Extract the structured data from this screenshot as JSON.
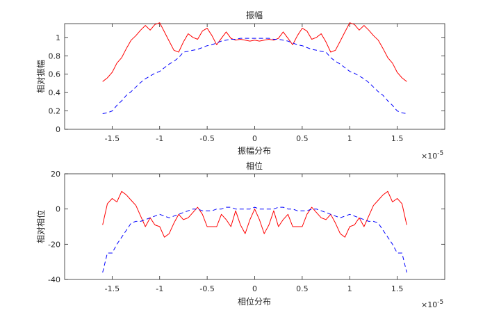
{
  "chart_data": [
    {
      "type": "line",
      "title": "振幅",
      "xlabel": "振幅分布",
      "ylabel": "相对振幅",
      "x_exponent": "×10-5",
      "xlim": [
        -2.0,
        2.0
      ],
      "ylim": [
        0,
        1.15
      ],
      "xticks": [
        -1.5,
        -1,
        -0.5,
        0,
        0.5,
        1,
        1.5
      ],
      "xtick_labels": [
        "-1.5",
        "-1",
        "-0.5",
        "0",
        "0.5",
        "1",
        "1.5"
      ],
      "yticks": [
        0,
        0.2,
        0.4,
        0.6,
        0.8,
        1
      ],
      "ytick_labels": [
        "0",
        "0.2",
        "0.4",
        "0.6",
        "0.8",
        "1"
      ],
      "grid": false,
      "x": [
        -1.6,
        -1.55,
        -1.5,
        -1.45,
        -1.4,
        -1.35,
        -1.3,
        -1.25,
        -1.2,
        -1.15,
        -1.1,
        -1.05,
        -1.0,
        -0.95,
        -0.9,
        -0.85,
        -0.8,
        -0.75,
        -0.7,
        -0.65,
        -0.6,
        -0.55,
        -0.5,
        -0.45,
        -0.4,
        -0.35,
        -0.3,
        -0.25,
        -0.2,
        -0.15,
        -0.1,
        -0.05,
        0,
        0.05,
        0.1,
        0.15,
        0.2,
        0.25,
        0.3,
        0.35,
        0.4,
        0.45,
        0.5,
        0.55,
        0.6,
        0.65,
        0.7,
        0.75,
        0.8,
        0.85,
        0.9,
        0.95,
        1.0,
        1.05,
        1.1,
        1.15,
        1.2,
        1.25,
        1.3,
        1.35,
        1.4,
        1.45,
        1.5,
        1.55,
        1.6
      ],
      "series": [
        {
          "color": "#ff0000",
          "dash": "solid",
          "values": [
            0.52,
            0.56,
            0.62,
            0.72,
            0.78,
            0.88,
            0.97,
            1.02,
            1.08,
            1.13,
            1.08,
            1.14,
            1.16,
            1.06,
            0.96,
            0.86,
            0.84,
            0.95,
            1.04,
            1.0,
            0.98,
            1.07,
            1.1,
            1.02,
            0.92,
            0.99,
            1.06,
            0.99,
            0.97,
            0.98,
            0.97,
            0.96,
            0.97,
            0.96,
            0.97,
            0.98,
            0.97,
            0.99,
            1.06,
            0.99,
            0.92,
            1.02,
            1.1,
            1.07,
            0.98,
            1.0,
            1.04,
            0.95,
            0.84,
            0.86,
            0.96,
            1.06,
            1.16,
            1.14,
            1.08,
            1.13,
            1.08,
            1.02,
            0.97,
            0.88,
            0.78,
            0.72,
            0.62,
            0.56,
            0.52
          ]
        },
        {
          "color": "#0000ff",
          "dash": "dashed",
          "values": [
            0.17,
            0.18,
            0.2,
            0.26,
            0.31,
            0.37,
            0.41,
            0.46,
            0.51,
            0.55,
            0.58,
            0.61,
            0.63,
            0.67,
            0.71,
            0.74,
            0.78,
            0.84,
            0.85,
            0.86,
            0.87,
            0.89,
            0.91,
            0.92,
            0.94,
            0.96,
            0.97,
            0.98,
            0.98,
            0.99,
            0.99,
            0.99,
            0.99,
            0.99,
            0.99,
            0.99,
            0.98,
            0.98,
            0.97,
            0.96,
            0.94,
            0.92,
            0.91,
            0.89,
            0.87,
            0.86,
            0.85,
            0.84,
            0.78,
            0.74,
            0.71,
            0.67,
            0.63,
            0.61,
            0.58,
            0.55,
            0.51,
            0.46,
            0.41,
            0.37,
            0.31,
            0.26,
            0.2,
            0.18,
            0.17
          ]
        }
      ]
    },
    {
      "type": "line",
      "title": "相位",
      "xlabel": "相位分布",
      "ylabel": "相对相位",
      "x_exponent": "×10-5",
      "xlim": [
        -2.0,
        2.0
      ],
      "ylim": [
        -40,
        20
      ],
      "xticks": [
        -1.5,
        -1,
        -0.5,
        0,
        0.5,
        1,
        1.5
      ],
      "xtick_labels": [
        "-1.5",
        "-1",
        "-0.5",
        "0",
        "0.5",
        "1",
        "1.5"
      ],
      "yticks": [
        -40,
        -20,
        0,
        20
      ],
      "ytick_labels": [
        "-40",
        "-20",
        "0",
        "20"
      ],
      "grid": false,
      "x": [
        -1.6,
        -1.55,
        -1.5,
        -1.45,
        -1.4,
        -1.35,
        -1.3,
        -1.25,
        -1.2,
        -1.15,
        -1.1,
        -1.05,
        -1.0,
        -0.95,
        -0.9,
        -0.85,
        -0.8,
        -0.75,
        -0.7,
        -0.65,
        -0.6,
        -0.55,
        -0.5,
        -0.45,
        -0.4,
        -0.35,
        -0.3,
        -0.25,
        -0.2,
        -0.15,
        -0.1,
        -0.05,
        0,
        0.05,
        0.1,
        0.15,
        0.2,
        0.25,
        0.3,
        0.35,
        0.4,
        0.45,
        0.5,
        0.55,
        0.6,
        0.65,
        0.7,
        0.75,
        0.8,
        0.85,
        0.9,
        0.95,
        1.0,
        1.05,
        1.1,
        1.15,
        1.2,
        1.25,
        1.3,
        1.35,
        1.4,
        1.45,
        1.5,
        1.55,
        1.6
      ],
      "series": [
        {
          "color": "#ff0000",
          "dash": "solid",
          "values": [
            -9,
            3,
            6,
            4,
            10,
            8,
            5,
            2,
            -4,
            -10,
            -5,
            -9,
            -10,
            -16,
            -14,
            -8,
            -3,
            -6,
            -5,
            -2,
            1,
            -3,
            -10,
            -10,
            -10,
            -3,
            -6,
            -10,
            -1,
            -9,
            -14,
            -6,
            0,
            -6,
            -14,
            -9,
            -1,
            -10,
            -6,
            -3,
            -10,
            -10,
            -10,
            -3,
            1,
            -2,
            -5,
            -6,
            -3,
            -8,
            -14,
            -16,
            -10,
            -9,
            -5,
            -10,
            -4,
            2,
            5,
            8,
            10,
            4,
            6,
            3,
            -9
          ]
        },
        {
          "color": "#0000ff",
          "dash": "dashed",
          "values": [
            -36,
            -25,
            -25,
            -20,
            -16,
            -12,
            -8,
            -7,
            -7,
            -6,
            -5,
            -4,
            -3,
            -4,
            -5,
            -4,
            -3,
            -2,
            -1,
            0,
            0,
            -1,
            -1,
            -1,
            0,
            0,
            1,
            1,
            0,
            0,
            0,
            0,
            1,
            0,
            0,
            0,
            0,
            1,
            1,
            0,
            0,
            -1,
            -1,
            -1,
            0,
            0,
            -1,
            -2,
            -3,
            -4,
            -5,
            -4,
            -3,
            -4,
            -5,
            -6,
            -7,
            -7,
            -8,
            -12,
            -16,
            -20,
            -25,
            -25,
            -36
          ]
        }
      ]
    }
  ]
}
